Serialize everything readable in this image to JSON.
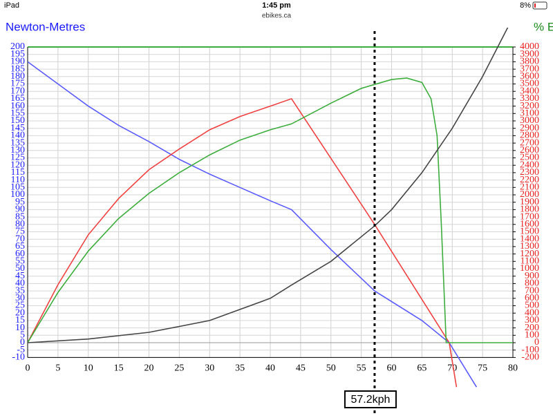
{
  "status_bar": {
    "device": "iPad",
    "time": "1:45 pm",
    "url": "ebikes.ca",
    "battery": "8%"
  },
  "chart_data": {
    "type": "line",
    "ylabel": "Newton-Metres",
    "y2label": "% E",
    "xlim": [
      0,
      80
    ],
    "xticks": [
      0,
      5,
      10,
      15,
      20,
      25,
      30,
      35,
      40,
      45,
      50,
      55,
      60,
      65,
      70,
      75,
      80
    ],
    "ylim": [
      -10,
      200
    ],
    "yticks": [
      -10,
      -5,
      0,
      5,
      10,
      15,
      20,
      25,
      30,
      35,
      40,
      45,
      50,
      55,
      60,
      65,
      70,
      75,
      80,
      85,
      90,
      95,
      100,
      105,
      110,
      115,
      120,
      125,
      130,
      135,
      140,
      145,
      150,
      155,
      160,
      165,
      170,
      175,
      180,
      185,
      190,
      195,
      200
    ],
    "y2lim": [
      -200,
      4000
    ],
    "y2ticks": [
      -200,
      -100,
      0,
      100,
      200,
      300,
      400,
      500,
      600,
      700,
      800,
      900,
      1000,
      1100,
      1200,
      1300,
      1400,
      1500,
      1600,
      1700,
      1800,
      1900,
      2000,
      2100,
      2200,
      2300,
      2400,
      2500,
      2600,
      2700,
      2800,
      2900,
      3000,
      3100,
      3200,
      3300,
      3400,
      3500,
      3600,
      3700,
      3800,
      3900,
      4000
    ],
    "grid": true,
    "ycolor": "#1a1aff",
    "y2color": "#e82020",
    "y2labelcolor": "#1a8a1a",
    "topcolor": "#3cad3c",
    "series": [
      {
        "color": "#5a5aff",
        "x": [
          0,
          5,
          10,
          15,
          20,
          25,
          30,
          35,
          40,
          43.5,
          50,
          57.2,
          65,
          69.5,
          74
        ],
        "values": [
          190,
          175,
          160,
          147,
          136,
          124,
          114,
          105,
          96,
          90,
          63,
          35,
          15,
          0,
          -30
        ]
      },
      {
        "color": "#f04040",
        "axis": "y2",
        "x": [
          0,
          5,
          10,
          15,
          20,
          25,
          30,
          35,
          40,
          43.5,
          57.2,
          69.5,
          70.7
        ],
        "values": [
          0,
          785,
          1460,
          1950,
          2340,
          2620,
          2880,
          3060,
          3200,
          3300,
          1600,
          0,
          -600
        ]
      },
      {
        "color": "#3cad3c",
        "x": [
          0,
          5,
          10,
          15,
          20,
          25,
          30,
          35,
          40,
          43.5,
          50,
          55,
          60,
          62.5,
          65,
          66.5,
          67.5,
          68.2,
          69,
          80
        ],
        "values": [
          0,
          34,
          62,
          84,
          101,
          115,
          127,
          137,
          144,
          148,
          162,
          172,
          178,
          179,
          176,
          165,
          140,
          80,
          0,
          0
        ]
      },
      {
        "color": "#444444",
        "axis": "y2",
        "x": [
          0,
          10,
          20,
          30,
          40,
          43.5,
          50,
          57.2,
          60,
          65,
          70,
          75,
          80
        ],
        "values": [
          0,
          50,
          140,
          300,
          600,
          780,
          1100,
          1580,
          1800,
          2300,
          2900,
          3600,
          4400
        ]
      }
    ],
    "marker": {
      "value": 57.2,
      "label": "57.2kph"
    }
  }
}
